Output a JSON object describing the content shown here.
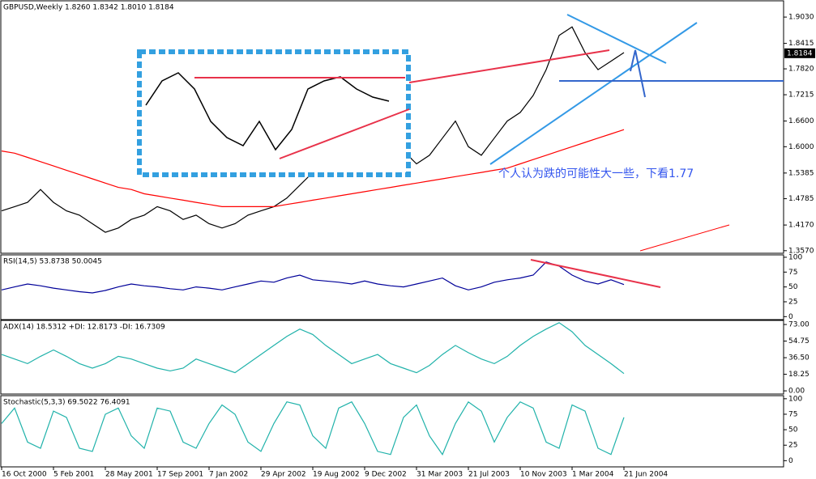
{
  "chart_data": [
    {
      "type": "line",
      "title": "GBPUSD,Weekly  1.8260 1.8342 1.8010 1.8184",
      "annotation": "个人认为跌的可能性大一些，下看1.77",
      "last_price": 1.8184,
      "categories": [
        "16 Oct 2000",
        null,
        null,
        null,
        "5 Feb 2001",
        null,
        null,
        null,
        "28 May 2001",
        null,
        null,
        null,
        "17 Sep 2001",
        null,
        null,
        null,
        "7 Jan 2002",
        null,
        null,
        null,
        "29 Apr 2002",
        null,
        null,
        null,
        "19 Aug 2002",
        null,
        null,
        null,
        "9 Dec 2002",
        null,
        null,
        null,
        "31 Mar 2003",
        null,
        null,
        null,
        "21 Jul 2003",
        null,
        null,
        null,
        "10 Nov 2003",
        null,
        null,
        null,
        "1 Mar 2004",
        null,
        null,
        null,
        "21 Jun 2004"
      ],
      "series": [
        {
          "color": "#000000",
          "values": [
            1.45,
            1.46,
            1.47,
            1.5,
            1.47,
            1.45,
            1.44,
            1.42,
            1.4,
            1.41,
            1.43,
            1.44,
            1.46,
            1.45,
            1.43,
            1.44,
            1.42,
            1.41,
            1.42,
            1.44,
            1.45,
            1.46,
            1.48,
            1.51,
            1.54,
            1.55,
            1.56,
            1.55,
            1.57,
            1.56,
            1.58,
            1.59,
            1.56,
            1.58,
            1.62,
            1.66,
            1.6,
            1.58,
            1.62,
            1.66,
            1.68,
            1.72,
            1.78,
            1.86,
            1.88,
            1.82,
            1.78,
            1.8,
            1.82
          ]
        },
        {
          "color": "#ff0000",
          "values": [
            1.59,
            1.585,
            1.575,
            1.565,
            1.555,
            1.545,
            1.535,
            1.525,
            1.515,
            1.505,
            1.5,
            1.49,
            1.485,
            1.48,
            1.475,
            1.47,
            1.465,
            1.46,
            1.46,
            1.46,
            1.46,
            1.46,
            1.465,
            1.47,
            1.475,
            1.48,
            1.485,
            1.49,
            1.495,
            1.5,
            1.505,
            1.51,
            1.515,
            1.52,
            1.525,
            1.53,
            1.535,
            1.54,
            1.545,
            1.55,
            1.56,
            1.57,
            1.58,
            1.59,
            1.6,
            1.61,
            1.62,
            1.63,
            1.64
          ]
        }
      ],
      "ylim": [
        1.351,
        1.941
      ],
      "yticks": [
        {
          "value": 1.903,
          "label": "1.9030"
        },
        1.8415,
        {
          "value": 1.782,
          "label": "1.7820"
        },
        1.7215,
        {
          "value": 1.66,
          "label": "1.6600"
        },
        {
          "value": 1.6,
          "label": "1.6000"
        },
        1.5385,
        1.4785,
        {
          "value": 1.417,
          "label": "1.4170"
        },
        {
          "value": 1.357,
          "label": "1.3570"
        }
      ]
    },
    {
      "type": "line",
      "title": "RSI(14,5) 53.8738 50.0045",
      "series": [
        {
          "color": "#000099",
          "values": [
            45,
            50,
            55,
            52,
            48,
            45,
            42,
            40,
            44,
            50,
            55,
            52,
            50,
            47,
            45,
            50,
            48,
            45,
            50,
            55,
            60,
            58,
            65,
            70,
            62,
            60,
            58,
            55,
            60,
            55,
            52,
            50,
            55,
            60,
            65,
            52,
            45,
            50,
            58,
            62,
            65,
            70,
            92,
            85,
            70,
            60,
            55,
            62,
            54
          ]
        }
      ],
      "ylim": [
        -5,
        104
      ],
      "yticks": [
        100,
        75,
        50,
        25,
        0
      ]
    },
    {
      "type": "line",
      "title": "ADX(14) 18.5312 +DI: 12.8173 -DI: 16.7309",
      "series": [
        {
          "color": "#20b2aa",
          "values": [
            40,
            35,
            30,
            38,
            45,
            38,
            30,
            25,
            30,
            38,
            35,
            30,
            25,
            22,
            25,
            35,
            30,
            25,
            20,
            30,
            40,
            50,
            60,
            68,
            62,
            50,
            40,
            30,
            35,
            40,
            30,
            25,
            20,
            28,
            40,
            50,
            42,
            35,
            30,
            38,
            50,
            60,
            68,
            75,
            65,
            50,
            40,
            30,
            19
          ]
        }
      ],
      "ylim": [
        -3.5,
        77.5
      ],
      "yticks": [
        {
          "value": 73,
          "label": "73.00"
        },
        {
          "value": 54.75,
          "label": "54.75"
        },
        {
          "value": 36.5,
          "label": "36.50"
        },
        {
          "value": 18.25,
          "label": "18.25"
        },
        {
          "value": 0,
          "label": "0.00"
        }
      ]
    },
    {
      "type": "line",
      "title": "Stochastic(5,3,3) 69.5022 76.4091",
      "series": [
        {
          "color": "#20b2aa",
          "values": [
            60,
            85,
            30,
            20,
            80,
            70,
            20,
            15,
            75,
            85,
            40,
            20,
            85,
            80,
            30,
            20,
            60,
            90,
            75,
            30,
            15,
            60,
            95,
            90,
            40,
            20,
            85,
            95,
            60,
            15,
            10,
            70,
            90,
            40,
            10,
            60,
            95,
            80,
            30,
            70,
            95,
            85,
            30,
            20,
            90,
            80,
            20,
            10,
            70
          ]
        }
      ],
      "ylim": [
        -10,
        105
      ],
      "yticks": [
        100,
        75,
        50,
        25,
        0
      ]
    }
  ]
}
